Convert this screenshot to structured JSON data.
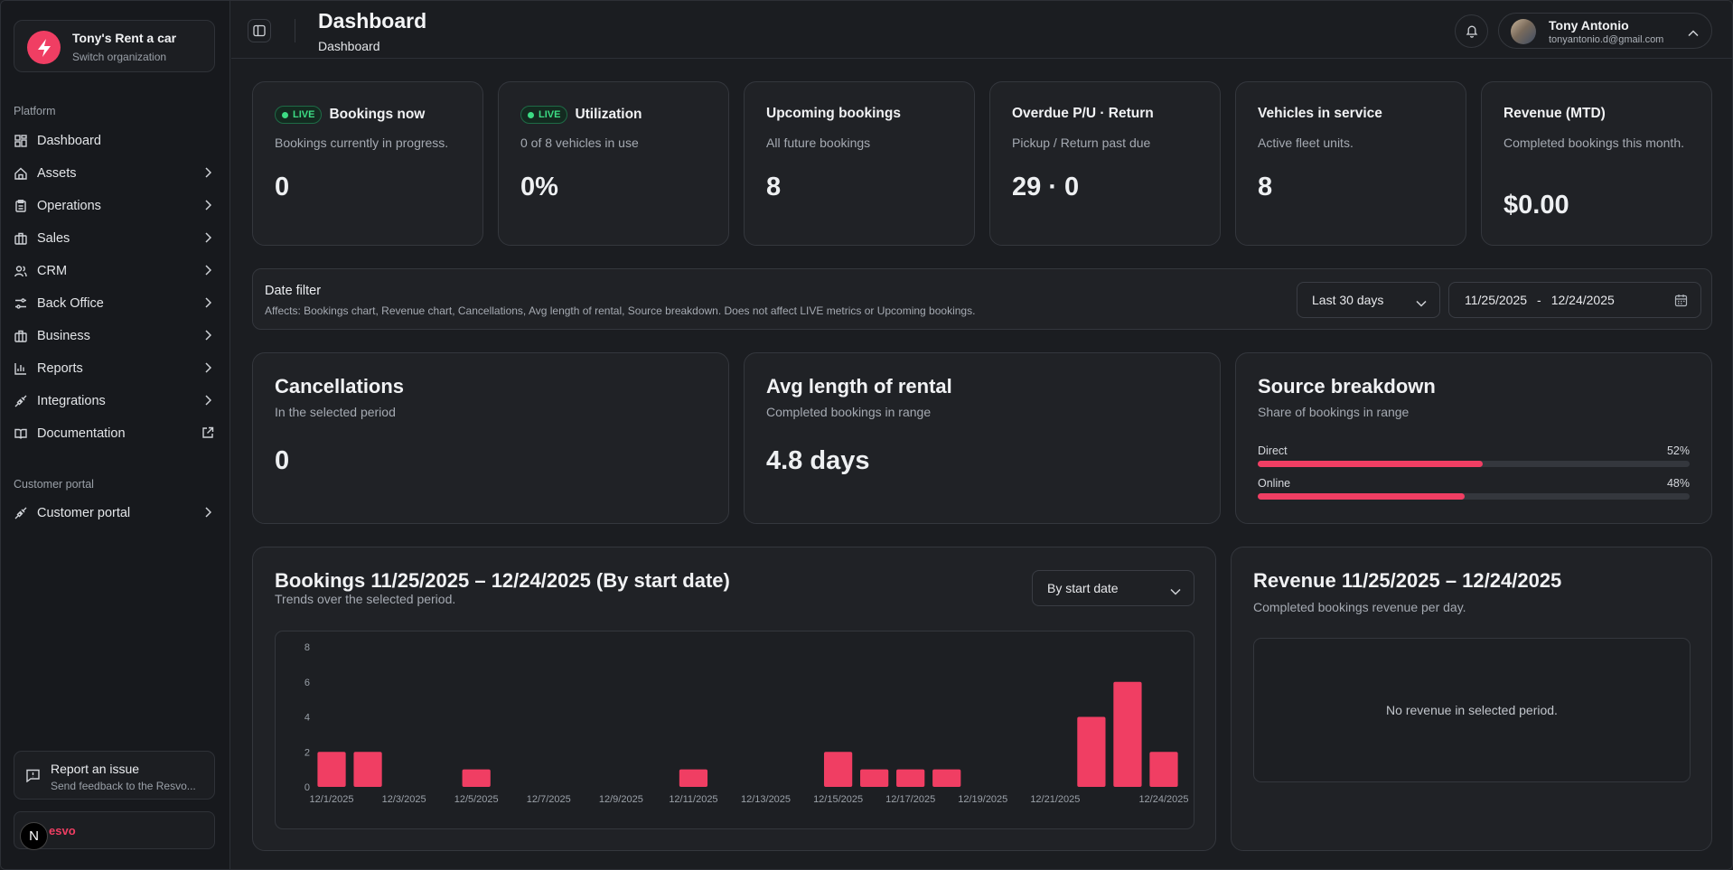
{
  "org": {
    "name": "Tony's Rent a car",
    "sub": "Switch organization"
  },
  "sidebar": {
    "platform_label": "Platform",
    "items": [
      {
        "label": "Dashboard"
      },
      {
        "label": "Assets"
      },
      {
        "label": "Operations"
      },
      {
        "label": "Sales"
      },
      {
        "label": "CRM"
      },
      {
        "label": "Back Office"
      },
      {
        "label": "Business"
      },
      {
        "label": "Reports"
      },
      {
        "label": "Integrations"
      },
      {
        "label": "Documentation"
      }
    ],
    "portal_label": "Customer portal",
    "portal_item": "Customer portal",
    "report": {
      "title": "Report an issue",
      "sub": "Send feedback to the Resvo..."
    },
    "brand": {
      "n": "N",
      "text": "esvo"
    }
  },
  "header": {
    "title": "Dashboard",
    "crumb": "Dashboard"
  },
  "user": {
    "name": "Tony Antonio",
    "email": "tonyantonio.d@gmail.com"
  },
  "live_badge": "LIVE",
  "stats": [
    {
      "title": "Bookings now",
      "sub": "Bookings currently in progress.",
      "value": "0",
      "live": true
    },
    {
      "title": "Utilization",
      "sub": "0 of 8 vehicles in use",
      "value": "0%",
      "live": true
    },
    {
      "title": "Upcoming bookings",
      "sub": "All future bookings",
      "value": "8"
    },
    {
      "title": "Overdue P/U · Return",
      "sub": "Pickup / Return past due",
      "value": "29 · 0"
    },
    {
      "title": "Vehicles in service",
      "sub": "Active fleet units.",
      "value": "8"
    },
    {
      "title": "Revenue (MTD)",
      "sub": "Completed bookings this month.",
      "value": "$0.00"
    }
  ],
  "date_filter": {
    "title": "Date filter",
    "sub": "Affects: Bookings chart, Revenue chart, Cancellations, Avg length of rental, Source breakdown. Does not affect LIVE metrics or Upcoming bookings.",
    "range_select": "Last 30 days",
    "start": "11/25/2025",
    "sep": "-",
    "end": "12/24/2025"
  },
  "cancellations": {
    "title": "Cancellations",
    "sub": "In the selected period",
    "value": "0"
  },
  "avg_rental": {
    "title": "Avg length of rental",
    "sub": "Completed bookings in range",
    "value": "4.8 days"
  },
  "source": {
    "title": "Source breakdown",
    "sub": "Share of bookings in range",
    "rows": [
      {
        "label": "Direct",
        "pct_label": "52%",
        "pct": 52
      },
      {
        "label": "Online",
        "pct_label": "48%",
        "pct": 48
      }
    ]
  },
  "bookings": {
    "title": "Bookings 11/25/2025 – 12/24/2025 (By start date)",
    "sub": "Trends over the selected period.",
    "select": "By start date"
  },
  "revenue": {
    "title": "Revenue 11/25/2025 – 12/24/2025",
    "sub": "Completed bookings revenue per day.",
    "empty": "No revenue in selected period."
  },
  "chart_data": {
    "type": "bar",
    "title": "Bookings 11/25/2025 – 12/24/2025 (By start date)",
    "categories": [
      "12/1/2025",
      "12/2/2025",
      "12/3/2025",
      "12/4/2025",
      "12/5/2025",
      "12/6/2025",
      "12/7/2025",
      "12/8/2025",
      "12/9/2025",
      "12/10/2025",
      "12/11/2025",
      "12/12/2025",
      "12/13/2025",
      "12/14/2025",
      "12/15/2025",
      "12/16/2025",
      "12/17/2025",
      "12/18/2025",
      "12/19/2025",
      "12/20/2025",
      "12/21/2025",
      "12/22/2025",
      "12/23/2025",
      "12/24/2025"
    ],
    "values": [
      2,
      2,
      0,
      0,
      1,
      0,
      0,
      0,
      0,
      0,
      1,
      0,
      0,
      0,
      2,
      1,
      1,
      1,
      0,
      0,
      0,
      4,
      6,
      2
    ],
    "x_tick_labels": [
      "12/1/2025",
      "12/3/2025",
      "12/5/2025",
      "12/7/2025",
      "12/9/2025",
      "12/11/2025",
      "12/13/2025",
      "12/15/2025",
      "12/17/2025",
      "12/19/2025",
      "12/21/2025",
      "12/24/2025"
    ],
    "y_ticks": [
      0,
      2,
      4,
      6,
      8
    ],
    "ylim": [
      0,
      8
    ],
    "bar_color": "#f03e63",
    "grid": false
  }
}
